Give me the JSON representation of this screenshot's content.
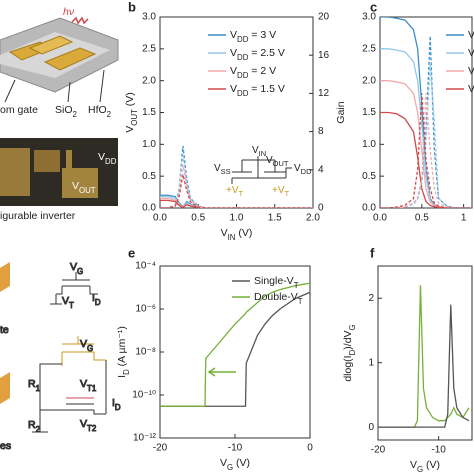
{
  "left": {
    "hv": "hν",
    "bottom_gate": "om gate",
    "sio2": [
      "SiO",
      "2"
    ],
    "hfo2": [
      "HfO",
      "2"
    ],
    "vdd": [
      "V",
      "DD"
    ],
    "vout": [
      "V",
      "OUT"
    ],
    "inverter": "igurable inverter",
    "vg1": [
      "V",
      "G"
    ],
    "vt": [
      "V",
      "T"
    ],
    "id1": [
      "I",
      "D"
    ],
    "te": "te",
    "vg2": [
      "V",
      "G"
    ],
    "r1": [
      "R",
      "1"
    ],
    "vt1": [
      "V",
      "T1"
    ],
    "r2": [
      "R",
      "2"
    ],
    "vt2": [
      "V",
      "T2"
    ],
    "id2": [
      "I",
      "D"
    ],
    "es": "es"
  },
  "chart_data": [
    {
      "type": "line",
      "panel": "b",
      "xlabel": [
        "V",
        "IN",
        " (V)"
      ],
      "ylabel": [
        "V",
        "OUT",
        " (V)"
      ],
      "y2label": "Gain",
      "x": [
        0,
        0.1,
        0.2,
        0.25,
        0.3,
        0.35,
        0.4,
        0.5,
        0.6,
        0.8,
        1.0,
        1.5,
        2.0
      ],
      "xlim": [
        0,
        2
      ],
      "xticks": [
        {
          "value": 0,
          "label": "0.0"
        },
        {
          "value": 0.5,
          "label": "0.5"
        },
        {
          "value": 1,
          "label": "1.0"
        },
        {
          "value": 1.5,
          "label": "1.5"
        },
        {
          "value": 2,
          "label": "2.0"
        }
      ],
      "ylim": [
        0,
        3
      ],
      "yticks": [
        {
          "value": 0,
          "label": "0.0"
        },
        {
          "value": 0.5,
          "label": "0.5"
        },
        {
          "value": 1,
          "label": "1.0"
        },
        {
          "value": 1.5,
          "label": "1.5"
        },
        {
          "value": 2,
          "label": "2.0"
        },
        {
          "value": 2.5,
          "label": "2.5"
        },
        {
          "value": 3,
          "label": "3.0"
        }
      ],
      "y2lim": [
        0,
        20
      ],
      "y2ticks": [
        0,
        4,
        8,
        12,
        16,
        20
      ],
      "series": [
        {
          "name": [
            "V",
            "DD",
            " = 3 V"
          ],
          "color": "#3b8ec8",
          "values": [
            0.2,
            0.2,
            0.18,
            0.08,
            0.02,
            0.1,
            0.06,
            0.01,
            0,
            0,
            0,
            0,
            0
          ]
        },
        {
          "name": [
            "V",
            "DD",
            " = 2.5 V"
          ],
          "color": "#95c9e8",
          "values": [
            0.18,
            0.18,
            0.15,
            0.06,
            0.02,
            0.08,
            0.05,
            0.01,
            0,
            0,
            0,
            0,
            0
          ]
        },
        {
          "name": [
            "V",
            "DD",
            " = 2 V"
          ],
          "color": "#f0aaaa",
          "values": [
            0.15,
            0.15,
            0.12,
            0.05,
            0.02,
            0.06,
            0.04,
            0.01,
            0,
            0,
            0,
            0,
            0
          ]
        },
        {
          "name": [
            "V",
            "DD",
            " = 1.5 V"
          ],
          "color": "#d04848",
          "values": [
            0.12,
            0.12,
            0.1,
            0.04,
            0.01,
            0.05,
            0.03,
            0.01,
            0,
            0,
            0,
            0,
            0
          ]
        },
        {
          "axis": "y2",
          "dash": true,
          "color": "#3b8ec8",
          "values": [
            0,
            0,
            0.3,
            2,
            6.5,
            3,
            1,
            0.2,
            0,
            0,
            0,
            0,
            0
          ]
        },
        {
          "axis": "y2",
          "dash": true,
          "color": "#95c9e8",
          "values": [
            0,
            0,
            0.3,
            1.8,
            5.5,
            2.6,
            0.9,
            0.2,
            0,
            0,
            0,
            0,
            0
          ]
        },
        {
          "axis": "y2",
          "dash": true,
          "color": "#f0aaaa",
          "values": [
            0,
            0,
            0.2,
            1.5,
            4.5,
            2.2,
            0.8,
            0.1,
            0,
            0,
            0,
            0,
            0
          ]
        },
        {
          "axis": "y2",
          "dash": true,
          "color": "#d04848",
          "values": [
            0,
            0,
            0.2,
            1.2,
            3.5,
            1.8,
            0.6,
            0.1,
            0,
            0,
            0,
            0,
            0
          ]
        }
      ],
      "annotations": [
        {
          "text": [
            "V",
            "IN"
          ],
          "color": "#222"
        },
        {
          "text": [
            "V",
            "OUT"
          ],
          "color": "#222"
        },
        {
          "text": [
            "V",
            "SS"
          ],
          "color": "#222"
        },
        {
          "text": [
            "V",
            "DD"
          ],
          "color": "#222"
        },
        {
          "text": [
            "+V",
            "T"
          ],
          "color": "#c99a1c"
        },
        {
          "text": [
            "+V",
            "T"
          ],
          "color": "#c99a1c"
        }
      ]
    },
    {
      "type": "line",
      "panel": "c",
      "x": [
        0,
        0.1,
        0.2,
        0.3,
        0.4,
        0.45,
        0.5,
        0.55,
        0.6,
        0.65,
        0.7,
        0.8,
        0.9,
        1.0,
        1.1
      ],
      "xlim": [
        0,
        1.1
      ],
      "xticks": [
        {
          "value": 0,
          "label": "0.0"
        },
        {
          "value": 0.5,
          "label": "0.5"
        },
        {
          "value": 1,
          "label": "1"
        }
      ],
      "ylim": [
        0,
        3
      ],
      "yticks": [
        {
          "value": 0,
          "label": "0.0"
        },
        {
          "value": 0.5,
          "label": "0.5"
        },
        {
          "value": 1,
          "label": "1.0"
        },
        {
          "value": 1.5,
          "label": "1.5"
        },
        {
          "value": 2,
          "label": "2.0"
        },
        {
          "value": 2.5,
          "label": "2.5"
        },
        {
          "value": 3,
          "label": "3.0"
        }
      ],
      "y2lim": [
        0,
        20
      ],
      "series": [
        {
          "name": "V",
          "color": "#3b8ec8",
          "values": [
            3,
            3,
            2.98,
            2.95,
            2.8,
            2.5,
            1.6,
            0.6,
            0.15,
            0.05,
            0.02,
            0,
            0,
            0,
            0
          ]
        },
        {
          "name": "V",
          "color": "#95c9e8",
          "values": [
            2.5,
            2.5,
            2.48,
            2.45,
            2.3,
            2.0,
            1.3,
            0.5,
            0.12,
            0.04,
            0.02,
            0,
            0,
            0,
            0
          ]
        },
        {
          "name": "V",
          "color": "#f0aaaa",
          "values": [
            2,
            2,
            1.98,
            1.95,
            1.8,
            1.5,
            0.9,
            0.3,
            0.1,
            0.03,
            0.01,
            0,
            0,
            0,
            0
          ]
        },
        {
          "name": "V",
          "color": "#d04848",
          "values": [
            1.5,
            1.5,
            1.48,
            1.4,
            1.2,
            0.8,
            0.3,
            0.1,
            0.04,
            0.02,
            0.01,
            0,
            0,
            0,
            0
          ]
        },
        {
          "axis": "y2",
          "dash": true,
          "color": "#3b8ec8",
          "values": [
            0,
            0,
            0,
            0.1,
            0.5,
            1,
            3,
            8,
            18,
            6,
            1,
            0.2,
            0,
            0,
            0
          ]
        },
        {
          "axis": "y2",
          "dash": true,
          "color": "#95c9e8",
          "values": [
            0,
            0,
            0,
            0.1,
            0.4,
            0.9,
            2.5,
            7,
            15,
            9,
            1,
            0.2,
            0,
            0,
            0
          ]
        },
        {
          "axis": "y2",
          "dash": true,
          "color": "#f0aaaa",
          "values": [
            0,
            0,
            0,
            0.1,
            0.5,
            1,
            3,
            12,
            6,
            2,
            0.5,
            0.1,
            0,
            0,
            0
          ]
        },
        {
          "axis": "y2",
          "dash": true,
          "color": "#d04848",
          "values": [
            0,
            0,
            0.1,
            0.3,
            1,
            4,
            12,
            5,
            2,
            0.5,
            0.2,
            0,
            0,
            0,
            0
          ]
        }
      ]
    },
    {
      "type": "line",
      "panel": "e",
      "ylog": true,
      "xlabel": [
        "V",
        "G",
        " (V)"
      ],
      "ylabel": [
        "I",
        "D",
        " (A µm⁻¹)"
      ],
      "x": [
        -20,
        -17,
        -14,
        -13.9,
        -12,
        -10,
        -8.6,
        -8.5,
        -7,
        -6,
        -5,
        -4,
        -2,
        0
      ],
      "xlim": [
        -20,
        0
      ],
      "xticks": [
        -20,
        -10,
        0
      ],
      "ylim": [
        1e-12,
        0.0001
      ],
      "yticks": [
        {
          "value": 1e-12,
          "label": "10⁻¹²"
        },
        {
          "value": 1e-10,
          "label": "10⁻¹⁰"
        },
        {
          "value": 1e-08,
          "label": "10⁻⁸"
        },
        {
          "value": 1e-06,
          "label": "10⁻⁶"
        },
        {
          "value": 0.0001,
          "label": "10⁻⁴"
        }
      ],
      "series": [
        {
          "name": [
            "Single-V",
            "T"
          ],
          "color": "#555555",
          "values": [
            3e-11,
            3e-11,
            3e-11,
            3e-11,
            3e-11,
            3e-11,
            3e-11,
            3e-09,
            6e-08,
            2e-07,
            5e-07,
            1e-06,
            3e-06,
            6e-06
          ]
        },
        {
          "name": [
            "Double-V",
            "T"
          ],
          "color": "#76b03a",
          "values": [
            3e-11,
            3e-11,
            3e-11,
            5e-09,
            3e-08,
            2e-07,
            6e-07,
            7e-07,
            2e-06,
            4e-06,
            6e-06,
            8e-06,
            1.2e-05,
            1.6e-05
          ]
        }
      ]
    },
    {
      "type": "line",
      "panel": "f",
      "xlabel": [
        "V",
        "G",
        " (V)"
      ],
      "ylabel": [
        "dlog(I",
        "D",
        ")/dV",
        "G"
      ],
      "x": [
        -20,
        -16,
        -14,
        -13.5,
        -13,
        -12.5,
        -12,
        -11,
        -10,
        -9,
        -8.5,
        -8,
        -7.5,
        -7,
        -6,
        -5
      ],
      "xlim": [
        -20,
        -4.5
      ],
      "xticks": [
        -20,
        -10
      ],
      "ylim": [
        -0.2,
        2.5
      ],
      "yticks": [
        0,
        1,
        2
      ],
      "series": [
        {
          "color": "#76b03a",
          "values": [
            0,
            0,
            0,
            0.1,
            2.2,
            0.6,
            0.3,
            0.15,
            0.1,
            0.1,
            0.15,
            0.2,
            0.3,
            0.2,
            0.15,
            0.3
          ]
        },
        {
          "color": "#555555",
          "values": [
            0,
            0,
            0,
            0,
            0,
            0,
            0,
            0,
            0,
            0,
            0.2,
            1.9,
            0.6,
            0.3,
            0.15,
            0.1
          ]
        }
      ]
    }
  ]
}
